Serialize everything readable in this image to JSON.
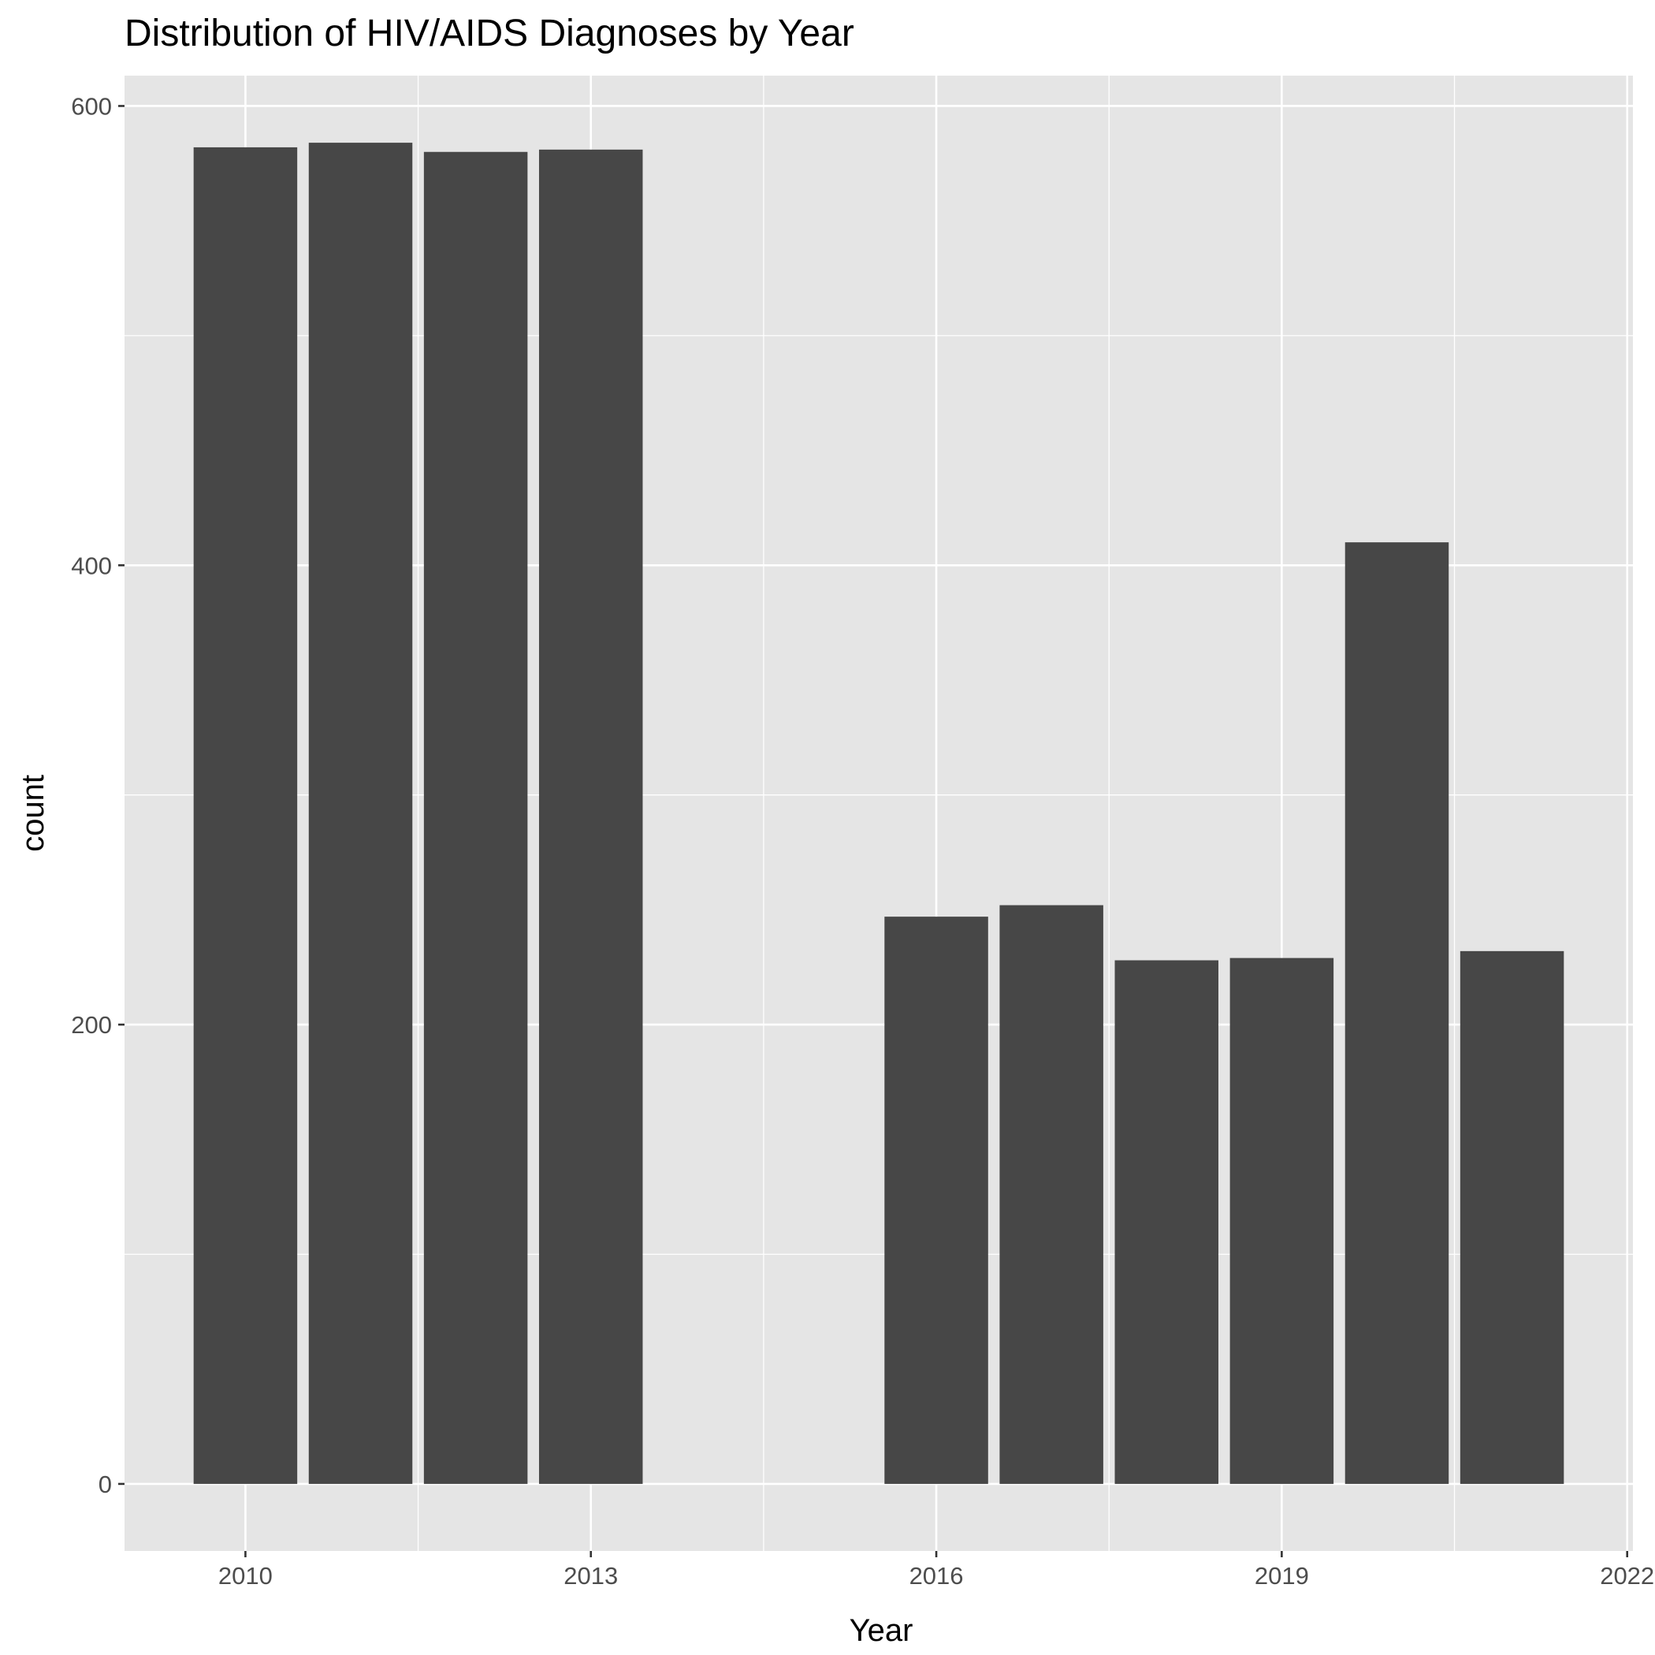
{
  "chart_data": {
    "type": "bar",
    "title": "Distribution of HIV/AIDS Diagnoses by Year",
    "xlabel": "Year",
    "ylabel": "count",
    "x": [
      2010,
      2011,
      2012,
      2013,
      2016,
      2017,
      2018,
      2019,
      2020,
      2021
    ],
    "values": [
      582,
      584,
      580,
      581,
      247,
      252,
      228,
      229,
      410,
      232
    ],
    "xlim": [
      2008.95,
      2022.05
    ],
    "ylim": [
      -29.2,
      613.2
    ],
    "x_ticks": [
      2010,
      2013,
      2016,
      2019,
      2022
    ],
    "x_tick_labels": [
      "2010",
      "2013",
      "2016",
      "2019",
      "2022"
    ],
    "y_ticks": [
      0,
      200,
      400,
      600
    ],
    "y_tick_labels": [
      "0",
      "200",
      "400",
      "600"
    ],
    "bar_width_years": 0.9,
    "grid": true,
    "legend": "none",
    "colors": {
      "panel_background": "#e5e5e5",
      "grid_line": "#ffffff",
      "bar_fill": "#474747",
      "tick_label": "#4d4d4d",
      "tick_mark": "#333333",
      "text": "#000000"
    }
  }
}
